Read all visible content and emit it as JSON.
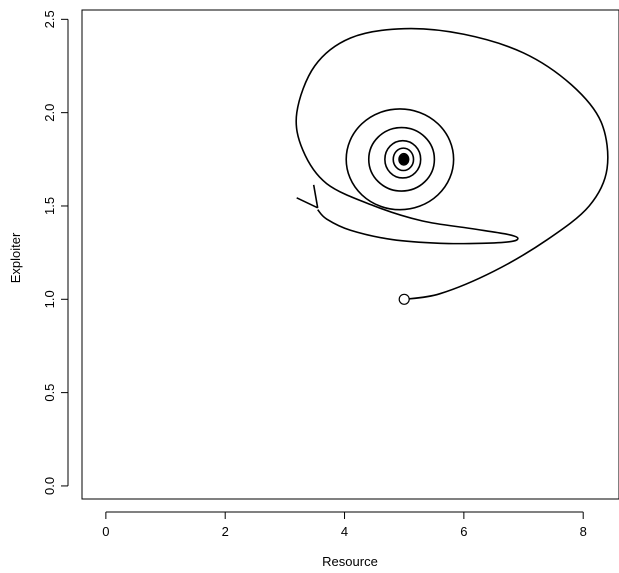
{
  "chart_data": {
    "type": "line",
    "title": "",
    "xlabel": "Resource",
    "ylabel": "Exploiter",
    "xlim": [
      -0.4,
      8.6
    ],
    "ylim": [
      -0.07,
      2.55
    ],
    "x_ticks": [
      0,
      2,
      4,
      6,
      8
    ],
    "x_tick_labels": [
      "0",
      "2",
      "4",
      "6",
      "8"
    ],
    "y_ticks": [
      0.0,
      0.5,
      1.0,
      1.5,
      2.0,
      2.5
    ],
    "y_tick_labels": [
      "0.0",
      "0.5",
      "1.0",
      "1.5",
      "2.0",
      "2.5"
    ],
    "grid": false,
    "legend": "none",
    "line_color": "#000000",
    "series": [
      {
        "description_points": "phase-plane trajectory spiraling inward from start to equilibrium",
        "start": [
          5.0,
          1.0
        ],
        "equilibrium": [
          5.0,
          1.75
        ],
        "x": [
          5.0,
          5.6,
          6.5,
          7.4,
          8.1,
          8.4,
          8.3,
          7.8,
          7.0,
          6.0,
          5.0,
          4.1,
          3.5,
          3.2,
          3.3,
          3.7,
          4.5,
          5.3,
          6.1,
          6.7,
          6.9,
          6.8,
          6.3,
          5.6,
          4.8,
          4.1,
          3.7,
          3.55
        ],
        "y": [
          1.0,
          1.03,
          1.15,
          1.32,
          1.5,
          1.7,
          1.95,
          2.15,
          2.32,
          2.42,
          2.45,
          2.4,
          2.25,
          2.0,
          1.8,
          1.62,
          1.5,
          1.42,
          1.38,
          1.35,
          1.33,
          1.31,
          1.3,
          1.3,
          1.32,
          1.37,
          1.43,
          1.48
        ]
      }
    ],
    "inner_spiral": {
      "center": [
        5.0,
        1.75
      ],
      "rings_x_radius": [
        0.9,
        0.55,
        0.3,
        0.17,
        0.08
      ],
      "rings_y_radius": [
        0.27,
        0.17,
        0.1,
        0.06,
        0.03
      ]
    }
  }
}
